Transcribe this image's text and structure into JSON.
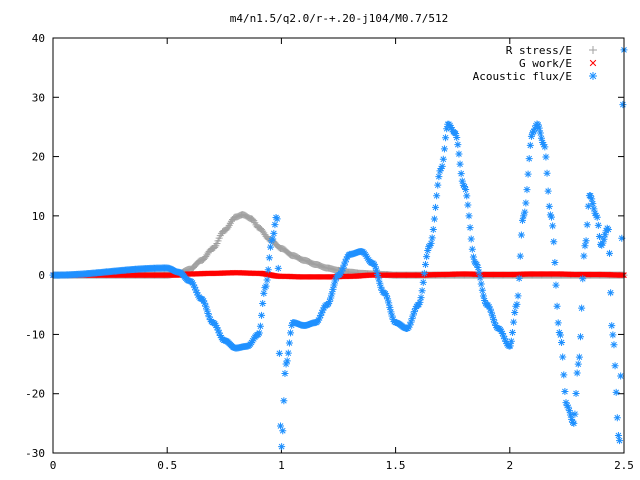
{
  "chart_data": {
    "type": "scatter",
    "title": "m4/n1.5/q2.0/r-+.20-j104/M0.7/512",
    "xlabel": "",
    "ylabel": "",
    "xlim": [
      0,
      2.5
    ],
    "ylim": [
      -30,
      40
    ],
    "x_ticks": [
      0,
      0.5,
      1,
      1.5,
      2,
      2.5
    ],
    "x_tick_labels": [
      "0",
      "0.5",
      "1",
      "1.5",
      "2",
      "2.5"
    ],
    "y_ticks": [
      -30,
      -20,
      -10,
      0,
      10,
      20,
      30,
      40
    ],
    "y_tick_labels": [
      "-30",
      "-20",
      "-10",
      "0",
      "10",
      "20",
      "30",
      "40"
    ],
    "grid": false,
    "legend_position": "top-right",
    "series": [
      {
        "name": "R stress/E",
        "marker": "plus",
        "color": "#a0a0a0",
        "x": [
          0,
          0.4,
          0.5,
          0.55,
          0.6,
          0.65,
          0.7,
          0.75,
          0.8,
          0.83,
          0.87,
          0.9,
          0.95,
          1.0,
          1.05,
          1.1,
          1.15,
          1.2,
          1.25,
          1.3,
          1.35,
          1.4,
          1.45,
          1.5
        ],
        "y": [
          0,
          0,
          0,
          0.3,
          1.0,
          2.5,
          4.5,
          7.5,
          9.8,
          10.2,
          9.5,
          8.0,
          6.0,
          4.5,
          3.3,
          2.5,
          1.8,
          1.2,
          0.8,
          0.5,
          0.3,
          0.2,
          0.1,
          0
        ]
      },
      {
        "name": "G work/E",
        "marker": "cross",
        "color": "#ff0000",
        "x": [
          0,
          0.5,
          0.55,
          0.6,
          0.7,
          0.8,
          0.9,
          1.0,
          1.1,
          1.2,
          1.3,
          1.4,
          1.5,
          1.6,
          1.7,
          1.8,
          1.9,
          2.0,
          2.1,
          2.2,
          2.3,
          2.4,
          2.5
        ],
        "y": [
          0,
          0,
          0,
          0.2,
          0.3,
          0.4,
          0.3,
          -0.2,
          -0.3,
          -0.3,
          -0.2,
          0,
          0,
          0,
          0.1,
          0.2,
          0.1,
          0.1,
          0.2,
          0.2,
          0.1,
          0.1,
          0
        ]
      },
      {
        "name": "Acoustic flux/E",
        "marker": "star",
        "color": "#1e90ff",
        "x": [
          0,
          0.5,
          0.55,
          0.6,
          0.65,
          0.7,
          0.75,
          0.8,
          0.85,
          0.9,
          0.93,
          0.96,
          0.98,
          1.0,
          1.02,
          1.05,
          1.1,
          1.15,
          1.2,
          1.25,
          1.3,
          1.35,
          1.4,
          1.45,
          1.5,
          1.55,
          1.6,
          1.65,
          1.7,
          1.73,
          1.76,
          1.8,
          1.85,
          1.9,
          1.95,
          2.0,
          2.03,
          2.06,
          2.1,
          2.12,
          2.15,
          2.18,
          2.22,
          2.25,
          2.28,
          2.3,
          2.33,
          2.35,
          2.38,
          2.4,
          2.43,
          2.45,
          2.48,
          2.5
        ],
        "y": [
          0,
          1.2,
          0.5,
          -1.0,
          -4.0,
          -8.0,
          -11.0,
          -12.3,
          -12.0,
          -10.0,
          -2.0,
          6.0,
          10.0,
          -29.0,
          -15.0,
          -8.0,
          -8.5,
          -8.0,
          -5.0,
          0,
          3.5,
          4.0,
          2.0,
          -3.0,
          -8.0,
          -9.0,
          -5.0,
          5.0,
          18.0,
          25.5,
          24.0,
          15.0,
          2.0,
          -5.0,
          -9.0,
          -12.0,
          -5.0,
          10.0,
          24.0,
          25.5,
          22.0,
          10.0,
          -10.0,
          -22.0,
          -25.0,
          -15.0,
          5.0,
          13.5,
          10.0,
          5.0,
          8.0,
          -10.0,
          -28.0,
          38.0
        ]
      }
    ]
  }
}
